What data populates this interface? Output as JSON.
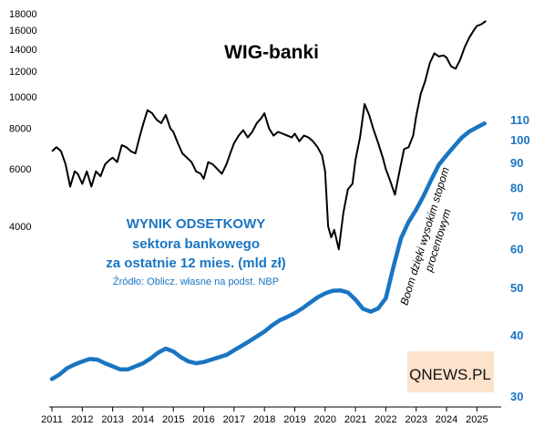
{
  "chart_data": [
    {
      "type": "line",
      "title": "WIG-banki",
      "y_axis_side": "left",
      "y_scale": "log",
      "ylim": [
        3000,
        18000
      ],
      "y_ticks": [
        4000,
        6000,
        8000,
        10000,
        12000,
        14000,
        16000,
        18000
      ],
      "color": "#000000",
      "series": [
        {
          "x": [
            2011.0,
            2011.15,
            2011.3,
            2011.45,
            2011.6,
            2011.75,
            2011.85,
            2012.0,
            2012.15,
            2012.3,
            2012.45,
            2012.6,
            2012.75,
            2012.9,
            2013.0,
            2013.15,
            2013.3,
            2013.45,
            2013.6,
            2013.75,
            2013.9,
            2014.0,
            2014.15,
            2014.3,
            2014.45,
            2014.6,
            2014.75,
            2014.9,
            2015.0,
            2015.15,
            2015.3,
            2015.45,
            2015.6,
            2015.75,
            2015.9,
            2016.0,
            2016.15,
            2016.3,
            2016.45,
            2016.6,
            2016.75,
            2016.9,
            2017.0,
            2017.15,
            2017.3,
            2017.45,
            2017.6,
            2017.75,
            2017.9,
            2018.0,
            2018.15,
            2018.3,
            2018.45,
            2018.6,
            2018.75,
            2018.9,
            2019.0,
            2019.15,
            2019.3,
            2019.45,
            2019.6,
            2019.75,
            2019.9,
            2020.0,
            2020.1,
            2020.2,
            2020.3,
            2020.45,
            2020.6,
            2020.75,
            2020.9,
            2021.0,
            2021.15,
            2021.3,
            2021.45,
            2021.6,
            2021.75,
            2021.9,
            2022.0,
            2022.15,
            2022.3,
            2022.45,
            2022.6,
            2022.75,
            2022.9,
            2023.0,
            2023.15,
            2023.3,
            2023.45,
            2023.6,
            2023.75,
            2023.9,
            2024.0,
            2024.15,
            2024.3,
            2024.45,
            2024.6,
            2024.75,
            2024.9,
            2025.0,
            2025.15,
            2025.3
          ],
          "y": [
            6800,
            7000,
            6800,
            6200,
            5300,
            5900,
            5800,
            5400,
            5900,
            5300,
            5900,
            5700,
            6200,
            6400,
            6500,
            6300,
            7100,
            7000,
            6800,
            6700,
            7600,
            8200,
            9100,
            8900,
            8500,
            8300,
            8800,
            8000,
            7800,
            7200,
            6700,
            6500,
            6300,
            5900,
            5800,
            5600,
            6300,
            6200,
            6000,
            5800,
            6200,
            6800,
            7200,
            7600,
            7900,
            7500,
            7800,
            8300,
            8600,
            8900,
            8000,
            7600,
            7800,
            7700,
            7600,
            7500,
            7700,
            7300,
            7600,
            7500,
            7300,
            7000,
            6600,
            5900,
            4000,
            3700,
            3900,
            3400,
            4400,
            5200,
            5400,
            6400,
            7500,
            9500,
            8800,
            7900,
            7200,
            6500,
            6000,
            5500,
            5000,
            5900,
            6900,
            7000,
            7600,
            8700,
            10200,
            11200,
            12700,
            13600,
            13300,
            13400,
            13200,
            12400,
            12200,
            13000,
            14200,
            15200,
            16000,
            16500,
            16700,
            17100
          ]
        }
      ]
    },
    {
      "type": "line",
      "title": "WYNIK ODSETKOWY",
      "subtitle": [
        "sektora bankowego",
        "za ostatnie 12 mies. (mld zł)"
      ],
      "source": "Źródło: Oblicz. własne na podst. NBP",
      "y_axis_side": "right",
      "y_scale": "log",
      "ylim": [
        30,
        120
      ],
      "y_ticks": [
        30,
        40,
        50,
        60,
        70,
        80,
        90,
        100,
        110
      ],
      "color": "#1a75c2",
      "annotation": [
        "Boom dzięki wysokim stopom",
        "procentowym"
      ],
      "series": [
        {
          "x": [
            2011.0,
            2011.25,
            2011.5,
            2011.75,
            2012.0,
            2012.25,
            2012.5,
            2012.75,
            2013.0,
            2013.25,
            2013.5,
            2013.75,
            2014.0,
            2014.25,
            2014.5,
            2014.75,
            2015.0,
            2015.25,
            2015.5,
            2015.75,
            2016.0,
            2016.25,
            2016.5,
            2016.75,
            2017.0,
            2017.25,
            2017.5,
            2017.75,
            2018.0,
            2018.25,
            2018.5,
            2018.75,
            2019.0,
            2019.25,
            2019.5,
            2019.75,
            2020.0,
            2020.25,
            2020.5,
            2020.75,
            2021.0,
            2021.25,
            2021.5,
            2021.75,
            2022.0,
            2022.25,
            2022.5,
            2022.75,
            2023.0,
            2023.25,
            2023.5,
            2023.75,
            2024.0,
            2024.25,
            2024.5,
            2024.75,
            2025.0,
            2025.25
          ],
          "y": [
            32.5,
            33.2,
            34.2,
            34.8,
            35.3,
            35.7,
            35.6,
            35.0,
            34.5,
            34.0,
            34.0,
            34.5,
            35.0,
            35.8,
            36.8,
            37.5,
            37.0,
            36.0,
            35.3,
            35.0,
            35.2,
            35.6,
            36.0,
            36.4,
            37.2,
            38.0,
            38.8,
            39.7,
            40.6,
            41.8,
            42.8,
            43.5,
            44.3,
            45.3,
            46.5,
            47.7,
            48.6,
            49.2,
            49.3,
            48.8,
            47.2,
            45.2,
            44.6,
            45.3,
            47.5,
            55.0,
            63.0,
            68.0,
            72.0,
            77.0,
            83.0,
            89.0,
            93.0,
            97.0,
            101.0,
            104.0,
            106.0,
            108.0
          ]
        }
      ]
    }
  ],
  "x_axis": {
    "xlim": [
      2011.0,
      2025.5
    ],
    "ticks": [
      "2011",
      "2012",
      "2013",
      "2014",
      "2015",
      "2016",
      "2017",
      "2018",
      "2019",
      "2020",
      "2021",
      "2022",
      "2023",
      "2024",
      "2025"
    ]
  },
  "logo": {
    "text": "QNEWS.PL",
    "background": "#fde2cc"
  },
  "grid": false
}
